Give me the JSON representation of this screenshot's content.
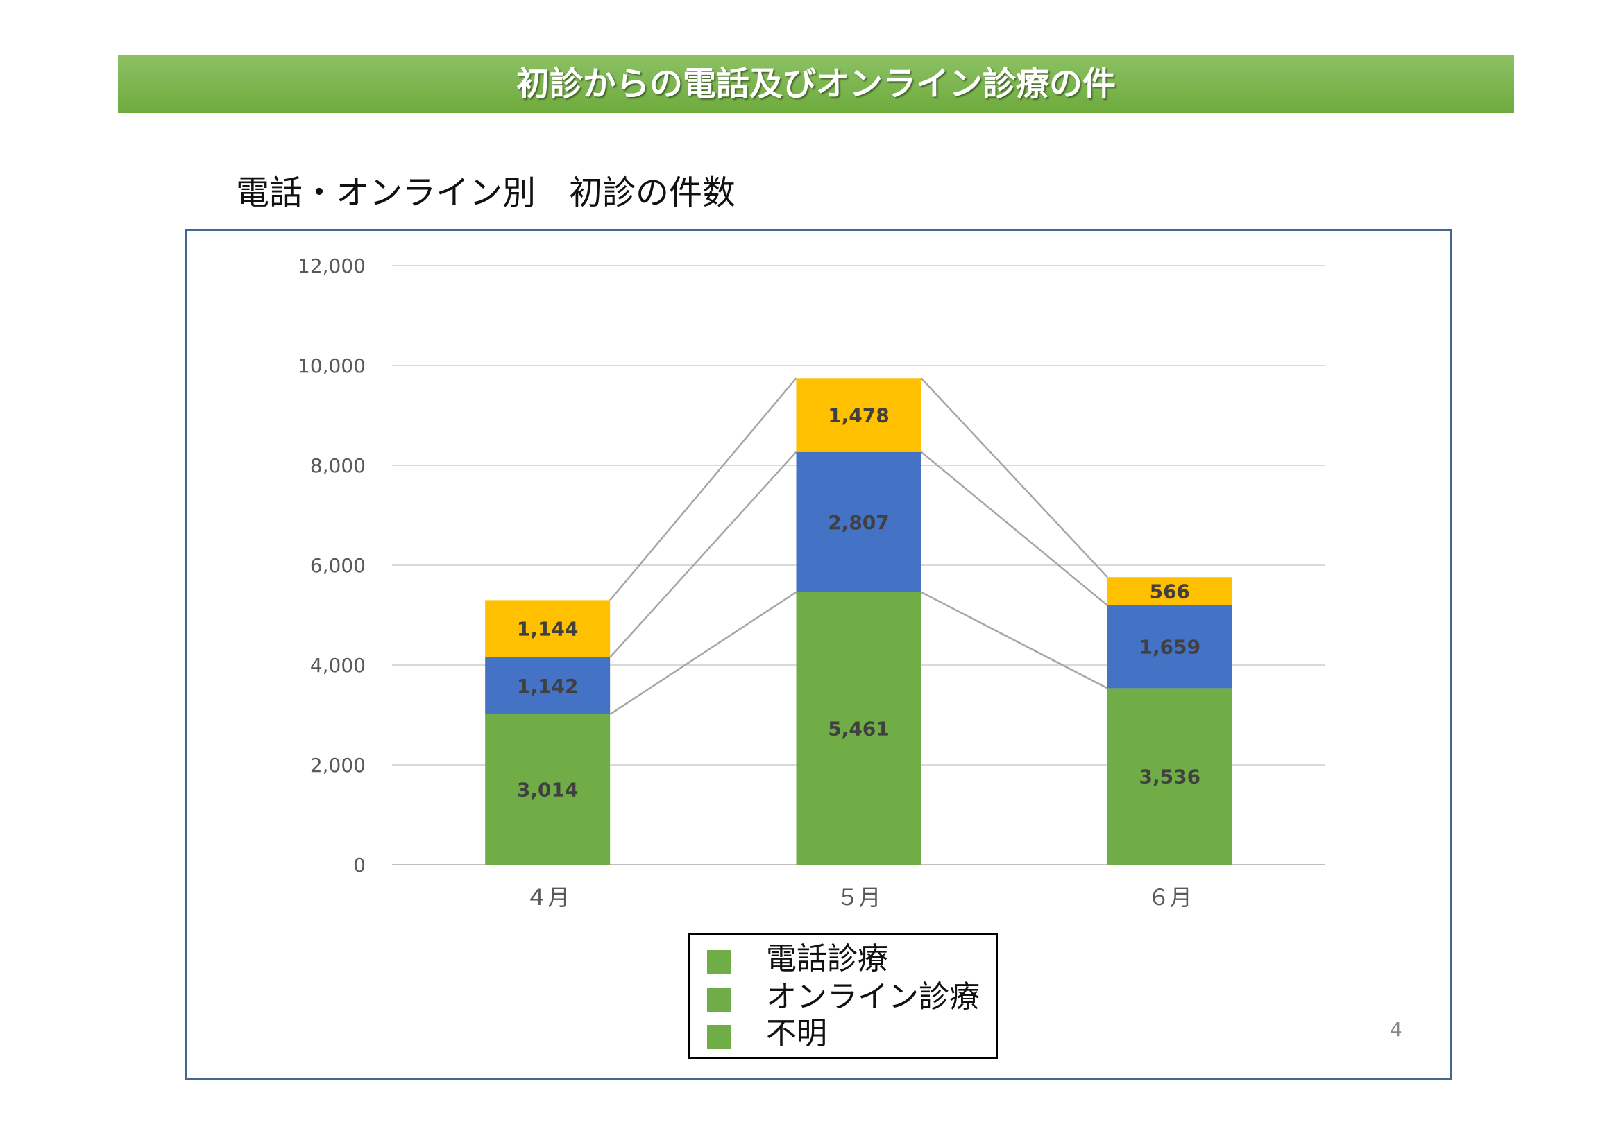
{
  "header": {
    "title": "初診からの電話及びオンライン診療の件"
  },
  "chart_title": "電話・オンライン別　初診の件数",
  "page_number": "4",
  "legend": {
    "items": [
      {
        "label": "電話診療",
        "color": "#70ad47"
      },
      {
        "label": "オンライン診療",
        "color": "#70ad47"
      },
      {
        "label": "不明",
        "color": "#70ad47"
      }
    ]
  },
  "chart_data": {
    "type": "bar",
    "stacked": true,
    "title": "",
    "xlabel": "",
    "ylabel": "",
    "categories": [
      "４月",
      "５月",
      "６月"
    ],
    "ylim": [
      0,
      12000
    ],
    "yticks": [
      0,
      2000,
      4000,
      6000,
      8000,
      10000,
      12000
    ],
    "ytick_labels": [
      "0",
      "2,000",
      "4,000",
      "6,000",
      "8,000",
      "10,000",
      "12,000"
    ],
    "series": [
      {
        "values": [
          3014,
          5461,
          3536
        ],
        "labels": [
          "3,014",
          "5,461",
          "3,536"
        ],
        "color": "#70ad47"
      },
      {
        "values": [
          1142,
          2807,
          1659
        ],
        "labels": [
          "1,142",
          "2,807",
          "1,659"
        ],
        "color": "#4472c4"
      },
      {
        "values": [
          1144,
          1478,
          566
        ],
        "labels": [
          "1,144",
          "1,478",
          "566"
        ],
        "color": "#ffc000"
      }
    ],
    "series_lines": true,
    "grid": true,
    "legend_position": "bottom"
  }
}
